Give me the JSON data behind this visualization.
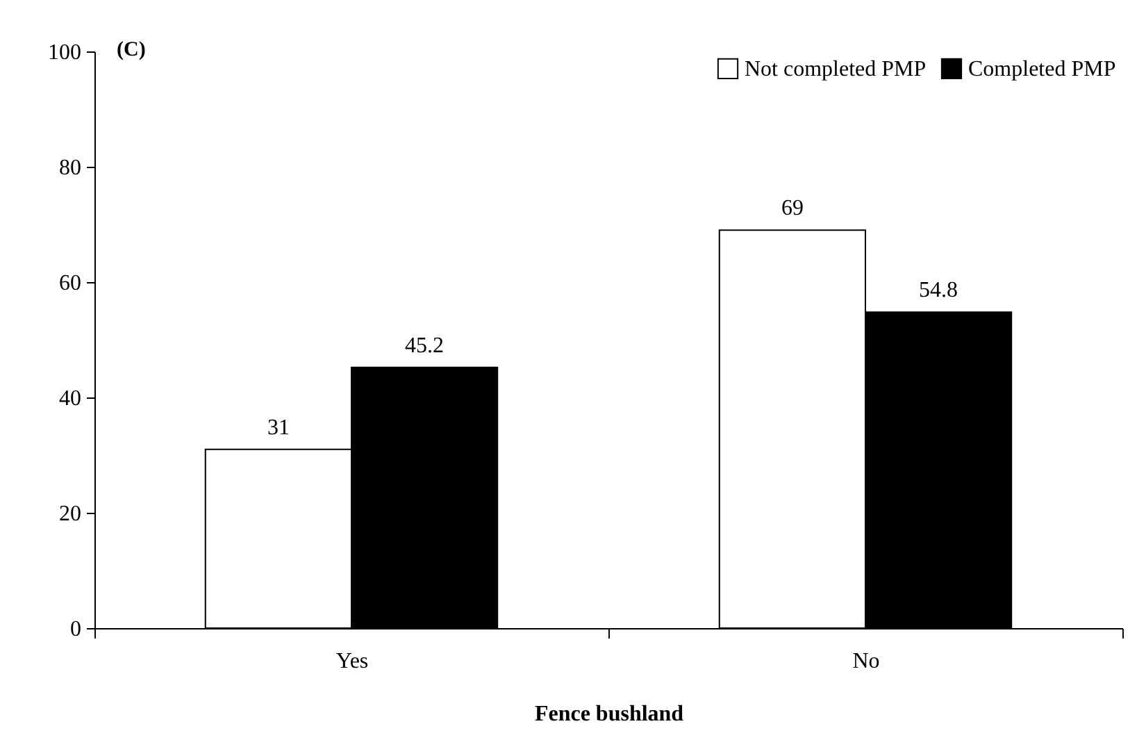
{
  "chart_data": {
    "type": "bar",
    "title": "(C)",
    "xlabel": "Fence bushland",
    "categories": [
      "Yes",
      "No"
    ],
    "series": [
      {
        "name": "Not completed PMP",
        "color": "#ffffff",
        "values": [
          31,
          69
        ]
      },
      {
        "name": "Completed PMP",
        "color": "#000000",
        "values": [
          45.2,
          54.8
        ]
      }
    ],
    "ylim": [
      0,
      100
    ],
    "yticks": [
      0,
      20,
      40,
      60,
      80,
      100
    ],
    "grid": false,
    "legend": "top right",
    "data_labels": true
  }
}
